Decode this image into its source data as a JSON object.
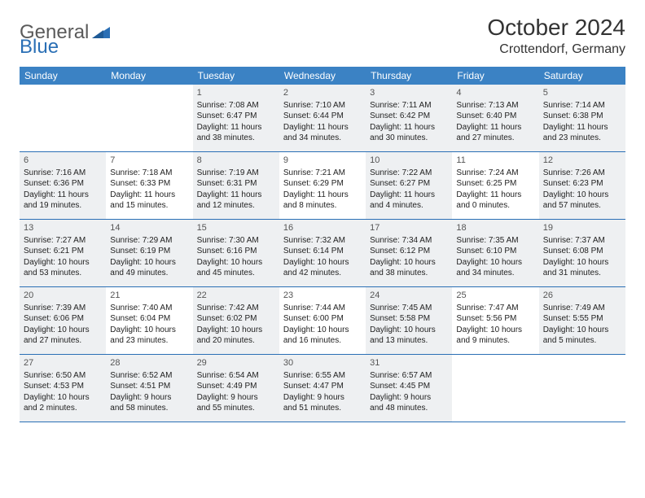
{
  "brand": {
    "general": "General",
    "blue": "Blue"
  },
  "title": "October 2024",
  "location": "Crottendorf, Germany",
  "colors": {
    "header_bg": "#3b82c4",
    "border": "#2a6fb5",
    "shaded_bg": "#eef0f2",
    "text": "#222222",
    "logo_gray": "#5a5a5a",
    "logo_blue": "#2a6fb5"
  },
  "weekdays": [
    "Sunday",
    "Monday",
    "Tuesday",
    "Wednesday",
    "Thursday",
    "Friday",
    "Saturday"
  ],
  "weeks": [
    [
      {
        "num": "",
        "shaded": false,
        "lines": []
      },
      {
        "num": "",
        "shaded": false,
        "lines": []
      },
      {
        "num": "1",
        "shaded": true,
        "lines": [
          "Sunrise: 7:08 AM",
          "Sunset: 6:47 PM",
          "Daylight: 11 hours",
          "and 38 minutes."
        ]
      },
      {
        "num": "2",
        "shaded": true,
        "lines": [
          "Sunrise: 7:10 AM",
          "Sunset: 6:44 PM",
          "Daylight: 11 hours",
          "and 34 minutes."
        ]
      },
      {
        "num": "3",
        "shaded": true,
        "lines": [
          "Sunrise: 7:11 AM",
          "Sunset: 6:42 PM",
          "Daylight: 11 hours",
          "and 30 minutes."
        ]
      },
      {
        "num": "4",
        "shaded": true,
        "lines": [
          "Sunrise: 7:13 AM",
          "Sunset: 6:40 PM",
          "Daylight: 11 hours",
          "and 27 minutes."
        ]
      },
      {
        "num": "5",
        "shaded": true,
        "lines": [
          "Sunrise: 7:14 AM",
          "Sunset: 6:38 PM",
          "Daylight: 11 hours",
          "and 23 minutes."
        ]
      }
    ],
    [
      {
        "num": "6",
        "shaded": true,
        "lines": [
          "Sunrise: 7:16 AM",
          "Sunset: 6:36 PM",
          "Daylight: 11 hours",
          "and 19 minutes."
        ]
      },
      {
        "num": "7",
        "shaded": false,
        "lines": [
          "Sunrise: 7:18 AM",
          "Sunset: 6:33 PM",
          "Daylight: 11 hours",
          "and 15 minutes."
        ]
      },
      {
        "num": "8",
        "shaded": true,
        "lines": [
          "Sunrise: 7:19 AM",
          "Sunset: 6:31 PM",
          "Daylight: 11 hours",
          "and 12 minutes."
        ]
      },
      {
        "num": "9",
        "shaded": false,
        "lines": [
          "Sunrise: 7:21 AM",
          "Sunset: 6:29 PM",
          "Daylight: 11 hours",
          "and 8 minutes."
        ]
      },
      {
        "num": "10",
        "shaded": true,
        "lines": [
          "Sunrise: 7:22 AM",
          "Sunset: 6:27 PM",
          "Daylight: 11 hours",
          "and 4 minutes."
        ]
      },
      {
        "num": "11",
        "shaded": false,
        "lines": [
          "Sunrise: 7:24 AM",
          "Sunset: 6:25 PM",
          "Daylight: 11 hours",
          "and 0 minutes."
        ]
      },
      {
        "num": "12",
        "shaded": true,
        "lines": [
          "Sunrise: 7:26 AM",
          "Sunset: 6:23 PM",
          "Daylight: 10 hours",
          "and 57 minutes."
        ]
      }
    ],
    [
      {
        "num": "13",
        "shaded": true,
        "lines": [
          "Sunrise: 7:27 AM",
          "Sunset: 6:21 PM",
          "Daylight: 10 hours",
          "and 53 minutes."
        ]
      },
      {
        "num": "14",
        "shaded": true,
        "lines": [
          "Sunrise: 7:29 AM",
          "Sunset: 6:19 PM",
          "Daylight: 10 hours",
          "and 49 minutes."
        ]
      },
      {
        "num": "15",
        "shaded": true,
        "lines": [
          "Sunrise: 7:30 AM",
          "Sunset: 6:16 PM",
          "Daylight: 10 hours",
          "and 45 minutes."
        ]
      },
      {
        "num": "16",
        "shaded": true,
        "lines": [
          "Sunrise: 7:32 AM",
          "Sunset: 6:14 PM",
          "Daylight: 10 hours",
          "and 42 minutes."
        ]
      },
      {
        "num": "17",
        "shaded": true,
        "lines": [
          "Sunrise: 7:34 AM",
          "Sunset: 6:12 PM",
          "Daylight: 10 hours",
          "and 38 minutes."
        ]
      },
      {
        "num": "18",
        "shaded": true,
        "lines": [
          "Sunrise: 7:35 AM",
          "Sunset: 6:10 PM",
          "Daylight: 10 hours",
          "and 34 minutes."
        ]
      },
      {
        "num": "19",
        "shaded": true,
        "lines": [
          "Sunrise: 7:37 AM",
          "Sunset: 6:08 PM",
          "Daylight: 10 hours",
          "and 31 minutes."
        ]
      }
    ],
    [
      {
        "num": "20",
        "shaded": true,
        "lines": [
          "Sunrise: 7:39 AM",
          "Sunset: 6:06 PM",
          "Daylight: 10 hours",
          "and 27 minutes."
        ]
      },
      {
        "num": "21",
        "shaded": false,
        "lines": [
          "Sunrise: 7:40 AM",
          "Sunset: 6:04 PM",
          "Daylight: 10 hours",
          "and 23 minutes."
        ]
      },
      {
        "num": "22",
        "shaded": true,
        "lines": [
          "Sunrise: 7:42 AM",
          "Sunset: 6:02 PM",
          "Daylight: 10 hours",
          "and 20 minutes."
        ]
      },
      {
        "num": "23",
        "shaded": false,
        "lines": [
          "Sunrise: 7:44 AM",
          "Sunset: 6:00 PM",
          "Daylight: 10 hours",
          "and 16 minutes."
        ]
      },
      {
        "num": "24",
        "shaded": true,
        "lines": [
          "Sunrise: 7:45 AM",
          "Sunset: 5:58 PM",
          "Daylight: 10 hours",
          "and 13 minutes."
        ]
      },
      {
        "num": "25",
        "shaded": false,
        "lines": [
          "Sunrise: 7:47 AM",
          "Sunset: 5:56 PM",
          "Daylight: 10 hours",
          "and 9 minutes."
        ]
      },
      {
        "num": "26",
        "shaded": true,
        "lines": [
          "Sunrise: 7:49 AM",
          "Sunset: 5:55 PM",
          "Daylight: 10 hours",
          "and 5 minutes."
        ]
      }
    ],
    [
      {
        "num": "27",
        "shaded": true,
        "lines": [
          "Sunrise: 6:50 AM",
          "Sunset: 4:53 PM",
          "Daylight: 10 hours",
          "and 2 minutes."
        ]
      },
      {
        "num": "28",
        "shaded": true,
        "lines": [
          "Sunrise: 6:52 AM",
          "Sunset: 4:51 PM",
          "Daylight: 9 hours",
          "and 58 minutes."
        ]
      },
      {
        "num": "29",
        "shaded": true,
        "lines": [
          "Sunrise: 6:54 AM",
          "Sunset: 4:49 PM",
          "Daylight: 9 hours",
          "and 55 minutes."
        ]
      },
      {
        "num": "30",
        "shaded": true,
        "lines": [
          "Sunrise: 6:55 AM",
          "Sunset: 4:47 PM",
          "Daylight: 9 hours",
          "and 51 minutes."
        ]
      },
      {
        "num": "31",
        "shaded": true,
        "lines": [
          "Sunrise: 6:57 AM",
          "Sunset: 4:45 PM",
          "Daylight: 9 hours",
          "and 48 minutes."
        ]
      },
      {
        "num": "",
        "shaded": false,
        "lines": []
      },
      {
        "num": "",
        "shaded": false,
        "lines": []
      }
    ]
  ]
}
